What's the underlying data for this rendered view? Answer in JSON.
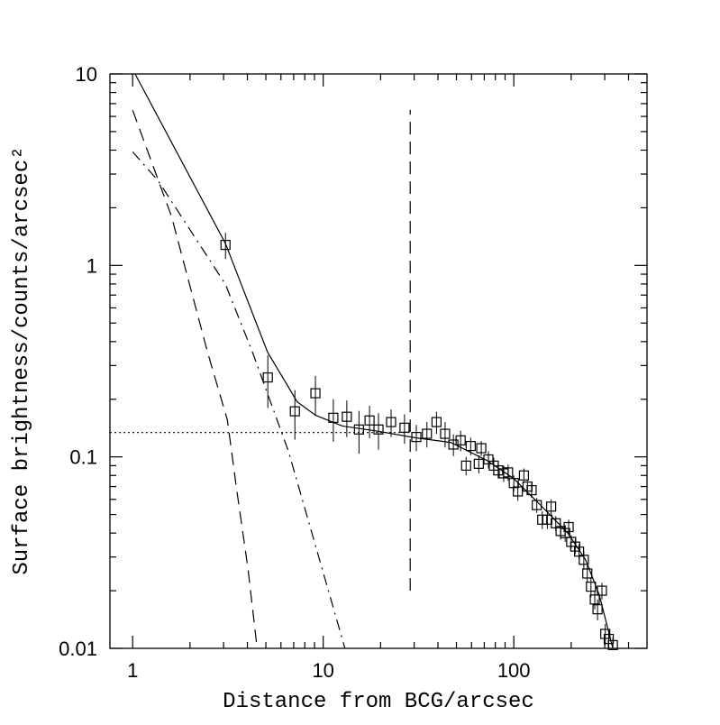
{
  "chart_data": {
    "type": "scatter",
    "xlabel": "Distance from BCG/arcsec",
    "ylabel": "Surface brightness/counts/arcsec²",
    "xscale": "log",
    "yscale": "log",
    "xlim": [
      0.76,
      500
    ],
    "ylim": [
      0.01,
      10
    ],
    "xticks": [
      1,
      10,
      100
    ],
    "yticks": [
      0.01,
      0.1,
      1,
      10
    ],
    "xminor_ticks": [
      2,
      3,
      4,
      5,
      6,
      7,
      8,
      9,
      20,
      30,
      40,
      50,
      60,
      70,
      80,
      90,
      200,
      300,
      400
    ],
    "yminor_ticks": [
      0.02,
      0.03,
      0.04,
      0.05,
      0.06,
      0.07,
      0.08,
      0.09,
      0.2,
      0.3,
      0.4,
      0.5,
      0.6,
      0.7,
      0.8,
      0.9,
      2,
      3,
      4,
      5,
      6,
      7,
      8,
      9
    ],
    "color": "#000000",
    "points": {
      "marker": "square",
      "x": [
        3.07,
        5.12,
        7.1,
        9.1,
        11.3,
        13.3,
        15.4,
        17.5,
        19.5,
        22.7,
        26.7,
        30.8,
        35,
        39.3,
        43.6,
        48.2,
        52.6,
        56.2,
        59.4,
        65.5,
        67.5,
        73.6,
        78.5,
        82.8,
        88.5,
        93.3,
        100,
        105,
        113,
        118,
        124,
        132,
        141,
        150,
        157,
        166,
        176,
        186,
        194,
        200,
        210,
        220,
        233,
        243,
        254,
        266,
        275,
        290,
        302,
        315,
        331
      ],
      "values": [
        1.28,
        0.26,
        0.173,
        0.215,
        0.16,
        0.162,
        0.139,
        0.155,
        0.139,
        0.152,
        0.142,
        0.127,
        0.132,
        0.152,
        0.132,
        0.116,
        0.122,
        0.09,
        0.114,
        0.092,
        0.111,
        0.097,
        0.09,
        0.085,
        0.082,
        0.083,
        0.073,
        0.066,
        0.08,
        0.07,
        0.067,
        0.056,
        0.047,
        0.047,
        0.055,
        0.045,
        0.041,
        0.04,
        0.043,
        0.036,
        0.034,
        0.032,
        0.029,
        0.0246,
        0.021,
        0.018,
        0.016,
        0.02,
        0.0119,
        0.0112,
        0.0104
      ],
      "errors": [
        0.2,
        0.08,
        0.05,
        0.05,
        0.04,
        0.035,
        0.035,
        0.03,
        0.03,
        0.025,
        0.025,
        0.02,
        0.02,
        0.02,
        0.02,
        0.015,
        0.015,
        0.01,
        0.012,
        0.01,
        0.01,
        0.01,
        0.009,
        0.008,
        0.008,
        0.008,
        0.007,
        0.007,
        0.007,
        0.006,
        0.006,
        0.005,
        0.005,
        0.005,
        0.005,
        0.004,
        0.004,
        0.004,
        0.004,
        0.003,
        0.003,
        0.003,
        0.003,
        0.0025,
        0.0025,
        0.002,
        0.002,
        0.002,
        0.0015,
        0.0012,
        0.001
      ]
    },
    "lines": [
      {
        "style": "solid",
        "x": [
          1.03,
          3.07,
          5.1,
          7.3,
          9.1,
          12.6,
          19.5,
          30.2,
          46.6,
          72,
          100,
          138,
          192,
          238,
          281,
          331
        ],
        "values": [
          10,
          1.3,
          0.353,
          0.194,
          0.165,
          0.145,
          0.136,
          0.126,
          0.119,
          0.096,
          0.077,
          0.056,
          0.04,
          0.029,
          0.019,
          0.01
        ]
      },
      {
        "style": "dashed",
        "x": [
          1,
          1.6,
          2.47,
          3.14,
          3.5,
          4.03,
          4.5
        ],
        "values": [
          6.47,
          1.8,
          0.353,
          0.156,
          0.0695,
          0.026,
          0.01
        ]
      },
      {
        "style": "dashdot",
        "x": [
          1,
          1.36,
          3.07,
          4.25,
          6.57,
          13
        ],
        "values": [
          3.92,
          2.77,
          0.796,
          0.353,
          0.107,
          0.01
        ]
      },
      {
        "style": "dotted",
        "x": [
          0.76,
          28.6
        ],
        "values": [
          0.134,
          0.134
        ]
      },
      {
        "style": "dashed",
        "x": [
          28.6,
          28.6
        ],
        "values": [
          0.02,
          6.5
        ]
      }
    ]
  }
}
